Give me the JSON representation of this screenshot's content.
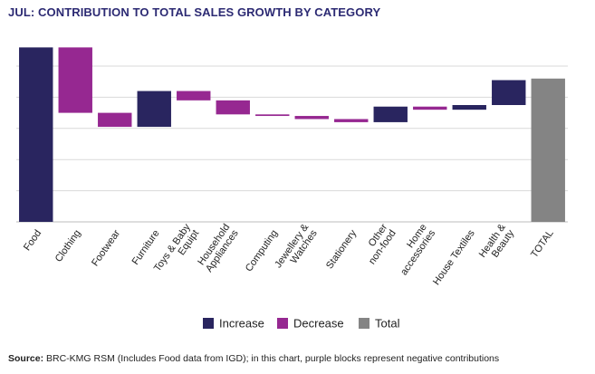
{
  "chart_data": {
    "type": "waterfall",
    "title": "JUL: CONTRIBUTION TO TOTAL SALES GROWTH BY CATEGORY",
    "xlabel": "",
    "ylabel": "",
    "ylim": [
      -1.0,
      5.0
    ],
    "gridlines": [
      0,
      1,
      2,
      3,
      4,
      5
    ],
    "categories": [
      "Food",
      "Clothing",
      "Footwear",
      "Furniture",
      "Toys & Baby Equipt",
      "Household Appliances",
      "Computing",
      "Jewellery & Watches",
      "Stationery",
      "Other non-food",
      "Home accessories",
      "House Textiles",
      "Health & Beauty",
      "TOTAL"
    ],
    "category_lines": [
      [
        "Food"
      ],
      [
        "Clothing"
      ],
      [
        "Footwear"
      ],
      [
        "Furniture"
      ],
      [
        "Toys & Baby",
        "Equipt"
      ],
      [
        "Household",
        "Appliances"
      ],
      [
        "Computing"
      ],
      [
        "Jewellery &",
        "Watches"
      ],
      [
        "Stationery"
      ],
      [
        "Other",
        "non-food"
      ],
      [
        "Home",
        "accessories"
      ],
      [
        "House Textiles"
      ],
      [
        "Health &",
        "Beauty"
      ],
      [
        "TOTAL"
      ]
    ],
    "values": [
      5.6,
      -2.1,
      -0.45,
      1.15,
      -0.3,
      -0.45,
      -0.05,
      -0.1,
      -0.1,
      0.5,
      -0.1,
      0.15,
      0.8,
      4.6
    ],
    "kinds": [
      "increase",
      "decrease",
      "decrease",
      "increase",
      "decrease",
      "decrease",
      "decrease",
      "decrease",
      "decrease",
      "increase",
      "decrease",
      "increase",
      "increase",
      "total"
    ],
    "series_colors": {
      "increase": "#29255f",
      "decrease": "#962891",
      "total": "#848484"
    },
    "legend": [
      {
        "key": "increase",
        "label": "Increase"
      },
      {
        "key": "decrease",
        "label": "Decrease"
      },
      {
        "key": "total",
        "label": "Total"
      }
    ],
    "legend_position": "bottom"
  },
  "source_label": "Source:",
  "source_text": "BRC-KMG RSM (Includes Food data from IGD); in this chart, purple blocks represent negative contributions"
}
